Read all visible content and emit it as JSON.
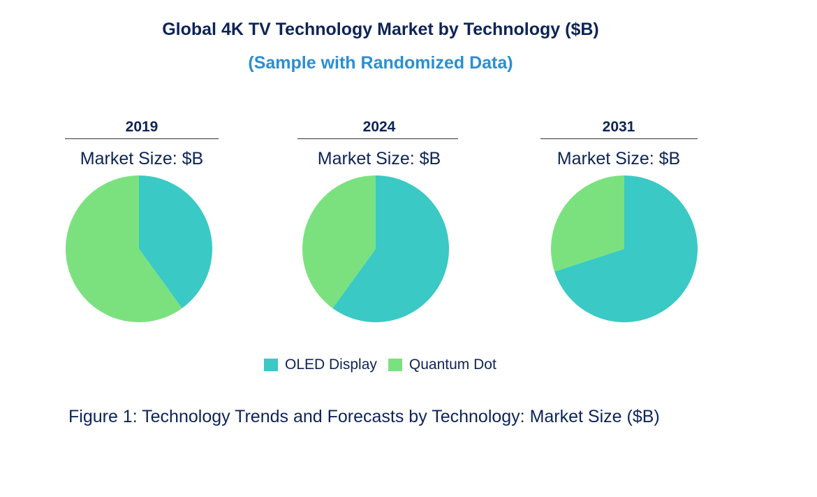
{
  "title": "Global 4K TV Technology Market by Technology ($B)",
  "subtitle": "(Sample with Randomized Data)",
  "caption": "Figure 1: Technology Trends and Forecasts by Technology: Market Size ($B)",
  "colors": {
    "oled": "#3ac9c4",
    "quantum": "#7be17f",
    "title": "#0d2456",
    "subtitle": "#2a8fd1"
  },
  "chart_data": {
    "type": "pie",
    "legend_position": "bottom",
    "series_names": [
      "OLED Display",
      "Quantum Dot"
    ],
    "panels": [
      {
        "year": "2019",
        "label": "Market Size: $B",
        "values": [
          40,
          60
        ]
      },
      {
        "year": "2024",
        "label": "Market Size: $B",
        "values": [
          60,
          40
        ]
      },
      {
        "year": "2031",
        "label": "Market Size: $B",
        "values": [
          70,
          30
        ]
      }
    ]
  }
}
